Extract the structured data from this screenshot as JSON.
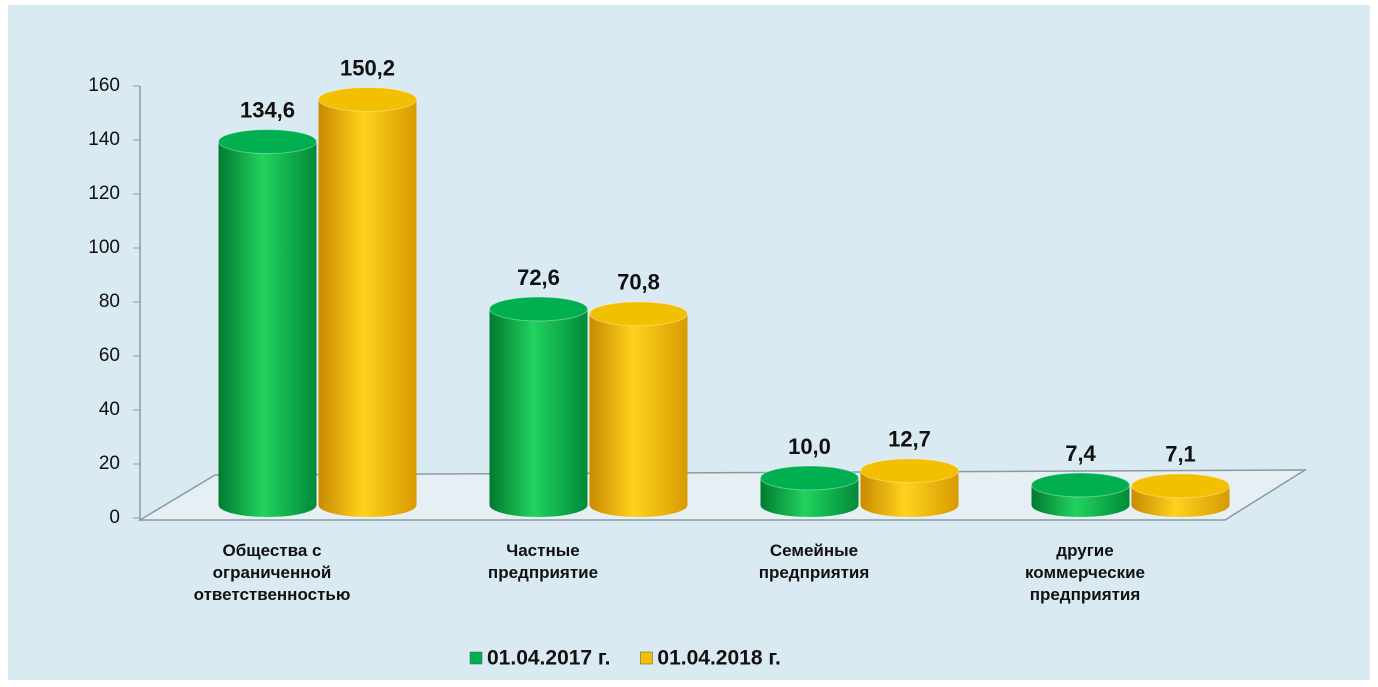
{
  "chart_data": {
    "type": "bar",
    "categories": [
      "Общества с ограниченной ответственностью",
      "Частные предприятие",
      "Семейные предприятия",
      "другие коммерческие предприятия"
    ],
    "series": [
      {
        "name": "01.04.2017 г.",
        "color": "#00b050",
        "values": [
          134.6,
          72.6,
          10.0,
          7.4
        ],
        "value_labels": [
          "134,6",
          "72,6",
          "10,0",
          "7,4"
        ]
      },
      {
        "name": "01.04.2018 г.",
        "color": "#f2c000",
        "values": [
          150.2,
          70.8,
          12.7,
          7.1
        ],
        "value_labels": [
          "150,2",
          "70,8",
          "12,7",
          "7,1"
        ]
      }
    ],
    "ylim": [
      0,
      160
    ],
    "yticks": [
      0,
      20,
      40,
      60,
      80,
      100,
      120,
      140,
      160
    ]
  }
}
